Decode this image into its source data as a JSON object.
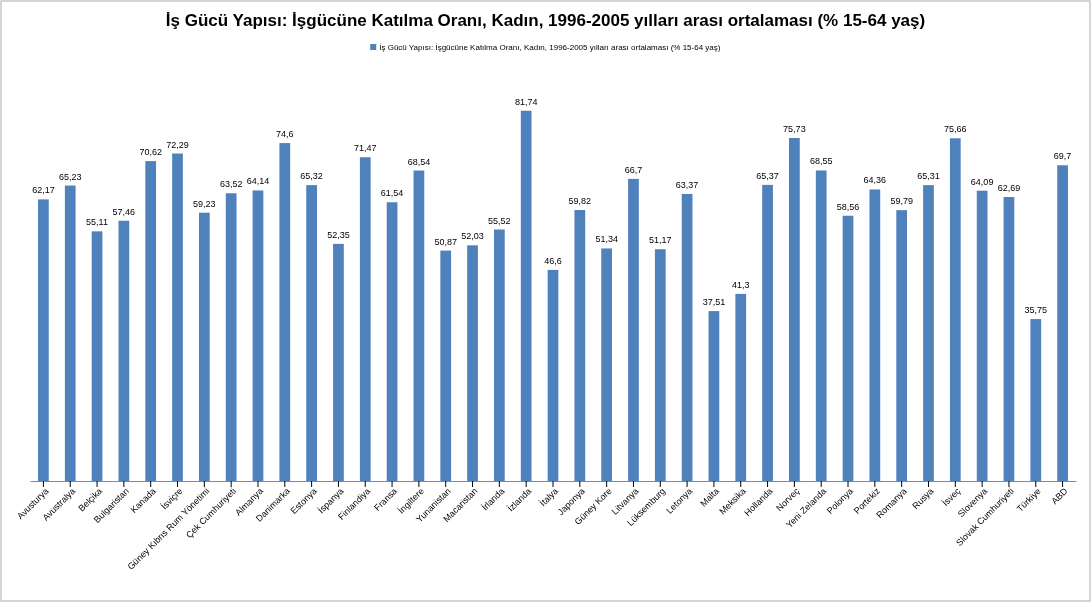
{
  "chart_data": {
    "type": "bar",
    "title": "İş Gücü Yapısı: İşgücüne Katılma Oranı, Kadın, 1996-2005 yılları arası ortalaması (% 15-64 yaş)",
    "categories": [
      "Avusturya",
      "Avustralya",
      "Belçika",
      "Bulgaristan",
      "Kanada",
      "İsviçre",
      "Güney Kıbrıs Rum Yönetimi",
      "Çek Cumhuriyeti",
      "Almanya",
      "Danimarka",
      "Estonya",
      "İspanya",
      "Finlandiya",
      "Fransa",
      "İngiltere",
      "Yunanistan",
      "Macaristan",
      "İrlanda",
      "İzlanda",
      "İtalya",
      "Japonya",
      "Güney Kore",
      "Litvanya",
      "Lüksemburg",
      "Letonya",
      "Malta",
      "Meksika",
      "Hollanda",
      "Norveç",
      "Yeni Zelanda",
      "Polonya",
      "Portekiz",
      "Romanya",
      "Rusya",
      "İsveç",
      "Slovenya",
      "Slovak Cumhuriyeti",
      "Türkiye",
      "ABD"
    ],
    "series": [
      {
        "name": "İş Gücü Yapısı: İşgücüne Katılma Oranı, Kadın, 1996-2005 yılları arası ortalaması (% 15-64 yaş)",
        "color": "#4f81bd",
        "values": [
          62.17,
          65.23,
          55.11,
          57.46,
          70.62,
          72.29,
          59.23,
          63.52,
          64.14,
          74.6,
          65.32,
          52.35,
          71.47,
          61.54,
          68.54,
          50.87,
          52.03,
          55.52,
          81.74,
          46.6,
          59.82,
          51.34,
          66.7,
          51.17,
          63.37,
          37.51,
          41.3,
          65.37,
          75.73,
          68.55,
          58.56,
          64.36,
          59.79,
          65.31,
          75.66,
          64.09,
          62.69,
          35.75,
          69.7
        ],
        "value_labels": [
          "62,17",
          "65,23",
          "55,11",
          "57,46",
          "70,62",
          "72,29",
          "59,23",
          "63,52",
          "64,14",
          "74,6",
          "65,32",
          "52,35",
          "71,47",
          "61,54",
          "68,54",
          "50,87",
          "52,03",
          "55,52",
          "81,74",
          "46,6",
          "59,82",
          "51,34",
          "66,7",
          "51,17",
          "63,37",
          "37,51",
          "41,3",
          "65,37",
          "75,73",
          "68,55",
          "58,56",
          "64,36",
          "59,79",
          "65,31",
          "75,66",
          "64,09",
          "62,69",
          "35,75",
          "69,7"
        ]
      }
    ],
    "legend": "top",
    "tick_labels": "x"
  }
}
